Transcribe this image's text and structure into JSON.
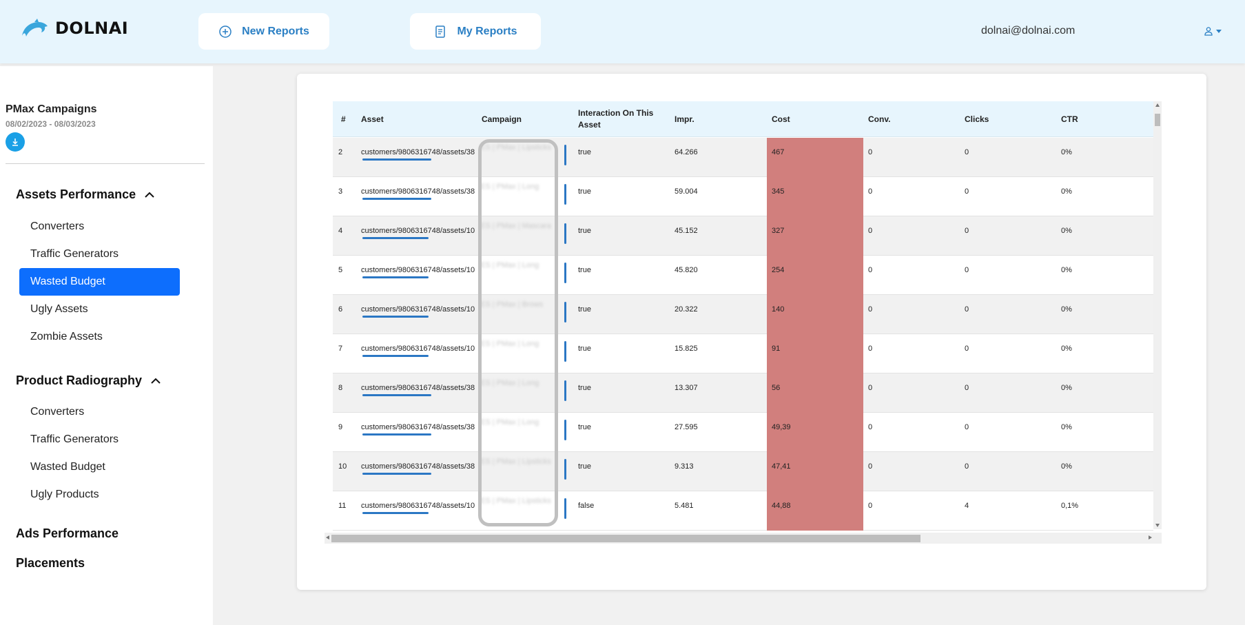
{
  "header": {
    "brand": "DOLNAI",
    "new_reports_label": "New Reports",
    "my_reports_label": "My Reports",
    "user_email": "dolnai@dolnai.com"
  },
  "sidebar": {
    "campaign_title": "PMax Campaigns",
    "campaign_dates": "08/02/2023 - 08/03/2023",
    "sections": [
      {
        "title": "Assets Performance",
        "items": [
          "Converters",
          "Traffic Generators",
          "Wasted Budget",
          "Ugly Assets",
          "Zombie Assets"
        ]
      },
      {
        "title": "Product Radiography",
        "items": [
          "Converters",
          "Traffic Generators",
          "Wasted Budget",
          "Ugly Products"
        ]
      },
      {
        "title": "Ads Performance"
      },
      {
        "title": "Placements"
      }
    ],
    "active_item": "Wasted Budget"
  },
  "table": {
    "columns": [
      "#",
      "Asset",
      "Campaign",
      "Interaction On This Asset",
      "Impr.",
      "Cost",
      "Conv.",
      "Clicks",
      "CTR"
    ],
    "rows": [
      {
        "num": "2",
        "asset": "customers/9806316748/assets/38",
        "campaign": "ES | PMax | Lipsticks",
        "interaction": "true",
        "impr": "64.266",
        "cost": "467",
        "conv": "0",
        "clicks": "0",
        "ctr": "0%"
      },
      {
        "num": "3",
        "asset": "customers/9806316748/assets/38",
        "campaign": "ES | PMax | Long",
        "interaction": "true",
        "impr": "59.004",
        "cost": "345",
        "conv": "0",
        "clicks": "0",
        "ctr": "0%"
      },
      {
        "num": "4",
        "asset": "customers/9806316748/assets/10",
        "campaign": "ES | PMax | Mascara",
        "interaction": "true",
        "impr": "45.152",
        "cost": "327",
        "conv": "0",
        "clicks": "0",
        "ctr": "0%"
      },
      {
        "num": "5",
        "asset": "customers/9806316748/assets/10",
        "campaign": "ES | PMax | Long",
        "interaction": "true",
        "impr": "45.820",
        "cost": "254",
        "conv": "0",
        "clicks": "0",
        "ctr": "0%"
      },
      {
        "num": "6",
        "asset": "customers/9806316748/assets/10",
        "campaign": "ES | PMax | Brows",
        "interaction": "true",
        "impr": "20.322",
        "cost": "140",
        "conv": "0",
        "clicks": "0",
        "ctr": "0%"
      },
      {
        "num": "7",
        "asset": "customers/9806316748/assets/10",
        "campaign": "ES | PMax | Long",
        "interaction": "true",
        "impr": "15.825",
        "cost": "91",
        "conv": "0",
        "clicks": "0",
        "ctr": "0%"
      },
      {
        "num": "8",
        "asset": "customers/9806316748/assets/38",
        "campaign": "ES | PMax | Long",
        "interaction": "true",
        "impr": "13.307",
        "cost": "56",
        "conv": "0",
        "clicks": "0",
        "ctr": "0%"
      },
      {
        "num": "9",
        "asset": "customers/9806316748/assets/38",
        "campaign": "ES | PMax | Long",
        "interaction": "true",
        "impr": "27.595",
        "cost": "49,39",
        "conv": "0",
        "clicks": "0",
        "ctr": "0%"
      },
      {
        "num": "10",
        "asset": "customers/9806316748/assets/38",
        "campaign": "ES | PMax | Lipsticks",
        "interaction": "true",
        "impr": "9.313",
        "cost": "47,41",
        "conv": "0",
        "clicks": "0",
        "ctr": "0%"
      },
      {
        "num": "11",
        "asset": "customers/9806316748/assets/10",
        "campaign": "ES | PMax | Lipsticks",
        "interaction": "false",
        "impr": "5.481",
        "cost": "44,88",
        "conv": "0",
        "clicks": "4",
        "ctr": "0,1%"
      }
    ]
  },
  "colors": {
    "accent": "#2a7fc4",
    "active_nav": "#0d6efd",
    "cost_highlight": "#d17f7d",
    "header_bg": "#e7f5fd"
  }
}
